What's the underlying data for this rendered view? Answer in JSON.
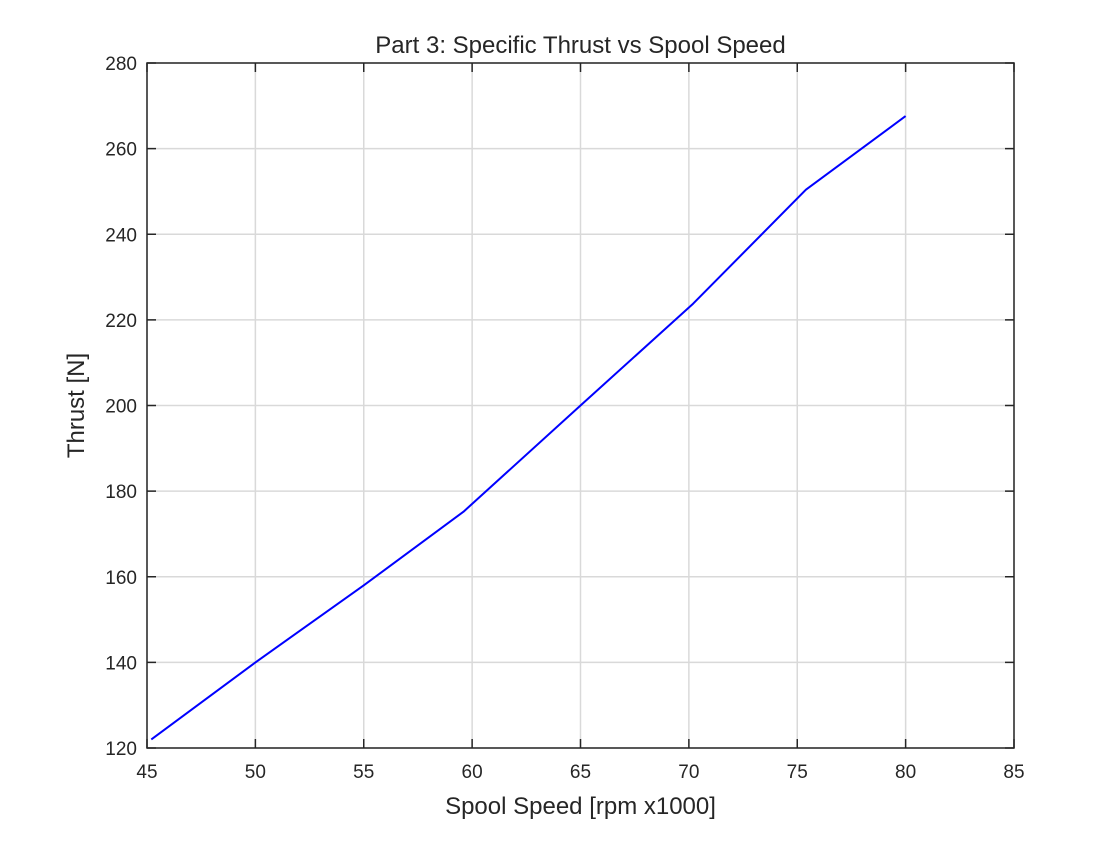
{
  "chart_data": {
    "type": "line",
    "title": "Part 3: Specific Thrust vs Spool Speed",
    "xlabel": "Spool Speed [rpm x1000]",
    "ylabel": "Thrust [N]",
    "xlim": [
      45,
      85
    ],
    "ylim": [
      120,
      280
    ],
    "xticks": [
      45,
      50,
      55,
      60,
      65,
      70,
      75,
      80,
      85
    ],
    "yticks": [
      120,
      140,
      160,
      180,
      200,
      220,
      240,
      260,
      280
    ],
    "grid": true,
    "box": true,
    "series": [
      {
        "color": "#0000ff",
        "x": [
          45.2,
          50,
          55,
          59.6,
          65,
          70.2,
          75.4,
          80
        ],
        "y": [
          122,
          140,
          158,
          175.2,
          200,
          223.8,
          250.4,
          267.6
        ]
      }
    ]
  }
}
